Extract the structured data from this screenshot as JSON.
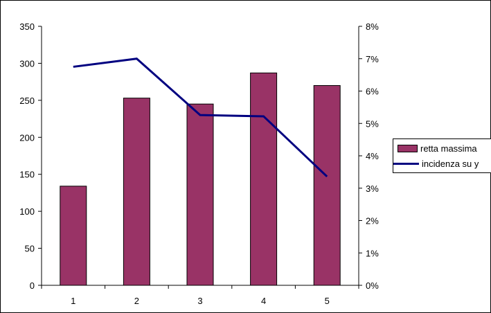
{
  "chart_data": {
    "type": "bar+line",
    "categories": [
      "1",
      "2",
      "3",
      "4",
      "5"
    ],
    "series": [
      {
        "name": "retta massima",
        "type": "bar",
        "axis": "left",
        "values": [
          134,
          253,
          245,
          287,
          270
        ]
      },
      {
        "name": "incidenza su y",
        "type": "line",
        "axis": "right",
        "values": [
          0.0675,
          0.07,
          0.0526,
          0.0522,
          0.0336
        ]
      }
    ],
    "y_left": {
      "min": 0,
      "max": 350,
      "ticks": [
        "0",
        "50",
        "100",
        "150",
        "200",
        "250",
        "300",
        "350"
      ]
    },
    "y_right": {
      "min": 0,
      "max": 0.08,
      "ticks": [
        "0%",
        "1%",
        "2%",
        "3%",
        "4%",
        "5%",
        "6%",
        "7%",
        "8%"
      ]
    },
    "grid": false,
    "legend": "right",
    "colors": {
      "bar": "#993366",
      "line": "#000080"
    }
  }
}
